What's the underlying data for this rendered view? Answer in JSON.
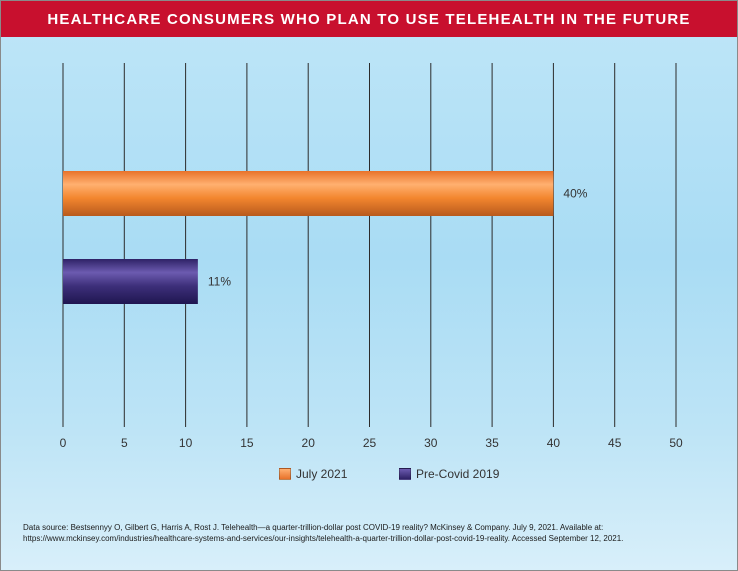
{
  "chart_data": {
    "type": "bar",
    "orientation": "horizontal",
    "title": "HEALTHCARE CONSUMERS WHO PLAN TO USE TELEHEALTH IN THE FUTURE",
    "xlim": [
      0,
      50
    ],
    "x_ticks": [
      "0",
      "5",
      "10",
      "15",
      "20",
      "25",
      "30",
      "35",
      "40",
      "45",
      "50"
    ],
    "grid": "vertical",
    "legend_placement": "bottom",
    "series": [
      {
        "name": "July 2021",
        "value": 40,
        "label": "40%",
        "color": "#f0812c"
      },
      {
        "name": "Pre-Covid 2019",
        "value": 11,
        "label": "11%",
        "color": "#3d2f7a"
      }
    ]
  },
  "source_text": "Data source: Bestsennyy O, Gilbert G, Harris A, Rost J. Telehealth—a quarter-trillion-dollar post COVID-19 reality? McKinsey & Company. July 9, 2021. Available at: https://www.mckinsey.com/industries/healthcare-systems-and-services/our-insights/telehealth-a-quarter-trillion-dollar-post-covid-19-reality. Accessed September 12, 2021."
}
